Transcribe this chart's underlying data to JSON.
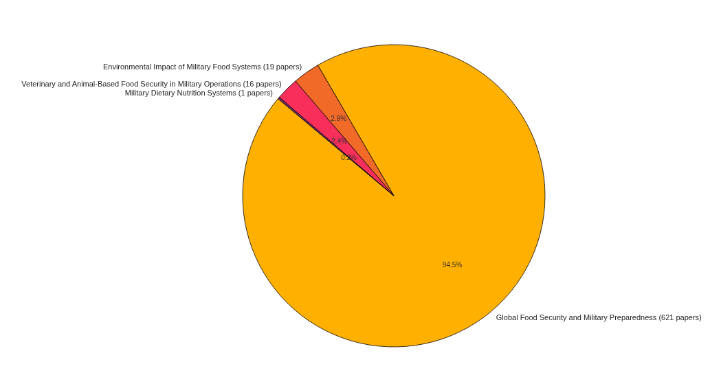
{
  "chart_data": {
    "type": "pie",
    "categories": [
      "Global Food Security and Military Preparedness (621 papers)",
      "Environmental Impact of Military Food Systems (19 papers)",
      "Veterinary and Animal-Based Food Security in Military Operations (16 papers)",
      "Military Dietary Nutrition Systems (1 papers)"
    ],
    "values": [
      94.5,
      2.9,
      2.4,
      0.2
    ],
    "value_labels": [
      "94.5%",
      "2.9%",
      "2.4%",
      "0.2%"
    ],
    "colors": [
      "#ffb000",
      "#f26a28",
      "#f72f5a",
      "#7b2d6b"
    ],
    "legend": false
  }
}
